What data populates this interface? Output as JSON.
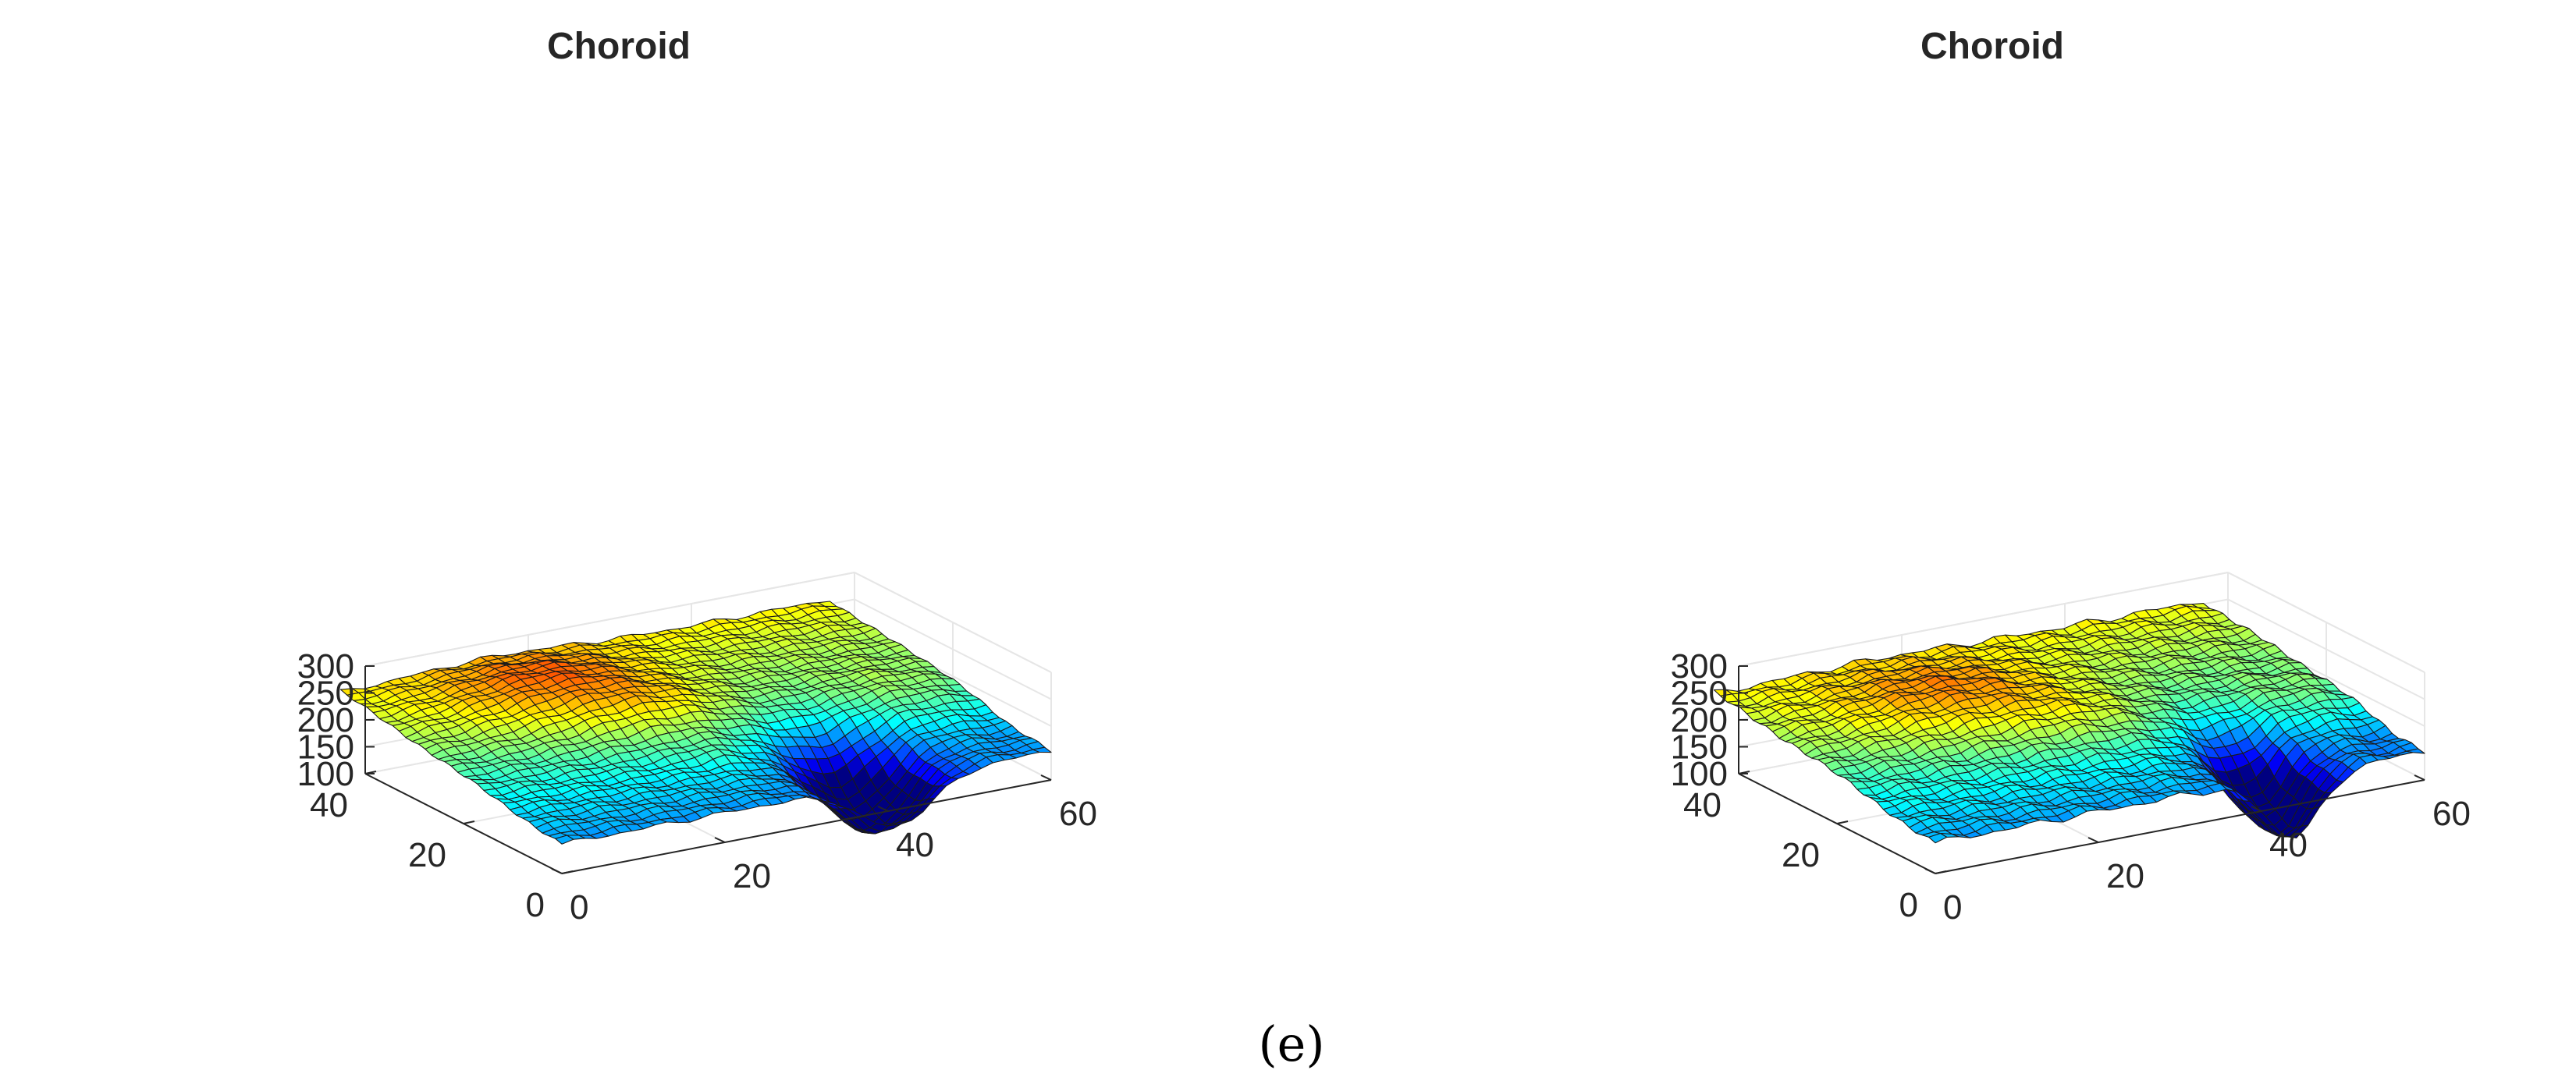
{
  "caption": "(e)",
  "chart_data": [
    {
      "type": "surface3d",
      "title": "Choroid",
      "xlabel": "",
      "ylabel": "",
      "zlabel": "",
      "xlim": [
        0,
        60
      ],
      "ylim": [
        0,
        40
      ],
      "zlim": [
        100,
        300
      ],
      "x_ticks": [
        "0",
        "20",
        "40",
        "60"
      ],
      "y_ticks": [
        "0",
        "20",
        "40"
      ],
      "z_ticks": [
        "100",
        "150",
        "200",
        "250",
        "300"
      ],
      "grid": true,
      "colormap": "jet",
      "color_range": [
        100,
        300
      ],
      "surface_model": {
        "x_range": [
          0,
          60
        ],
        "y_range": [
          0,
          45
        ],
        "grid_nx": 42,
        "grid_ny": 34,
        "base": 190,
        "gradient_y": 1.6,
        "y_center": 22,
        "bumps": [
          {
            "x": 41,
            "y": 6,
            "sx": 4.5,
            "sy": 6.5,
            "amp": -130
          },
          {
            "x": 19,
            "y": 34,
            "sx": 9,
            "sy": 7,
            "amp": 45
          },
          {
            "x": 26,
            "y": 24,
            "sx": 7,
            "sy": 5,
            "amp": 28
          },
          {
            "x": 27,
            "y": 14,
            "sx": 2.5,
            "sy": 2.5,
            "amp": 10
          },
          {
            "x": 53,
            "y": 20,
            "sx": 6,
            "sy": 6,
            "amp": 18
          },
          {
            "x": 58,
            "y": 8,
            "sx": 4,
            "sy": 4,
            "amp": -10
          }
        ],
        "ripple_amp": 5
      }
    },
    {
      "type": "surface3d",
      "title": "Choroid",
      "xlabel": "",
      "ylabel": "",
      "zlabel": "",
      "xlim": [
        0,
        60
      ],
      "ylim": [
        0,
        40
      ],
      "zlim": [
        100,
        300
      ],
      "x_ticks": [
        "0",
        "20",
        "40",
        "60"
      ],
      "y_ticks": [
        "0",
        "20",
        "40"
      ],
      "z_ticks": [
        "100",
        "150",
        "200",
        "250",
        "300"
      ],
      "grid": true,
      "colormap": "jet",
      "color_range": [
        100,
        300
      ],
      "surface_model": {
        "x_range": [
          0,
          60
        ],
        "y_range": [
          0,
          45
        ],
        "grid_nx": 42,
        "grid_ny": 34,
        "base": 190,
        "gradient_y": 1.5,
        "y_center": 22,
        "bumps": [
          {
            "x": 44,
            "y": 4,
            "sx": 3.5,
            "sy": 7,
            "amp": -135
          },
          {
            "x": 20,
            "y": 30,
            "sx": 10,
            "sy": 8,
            "amp": 45
          },
          {
            "x": 30,
            "y": 20,
            "sx": 7,
            "sy": 5,
            "amp": 22
          },
          {
            "x": 55,
            "y": 18,
            "sx": 5,
            "sy": 5,
            "amp": 15
          },
          {
            "x": 58,
            "y": 6,
            "sx": 4,
            "sy": 4,
            "amp": -15
          }
        ],
        "ripple_amp": 7
      }
    }
  ]
}
